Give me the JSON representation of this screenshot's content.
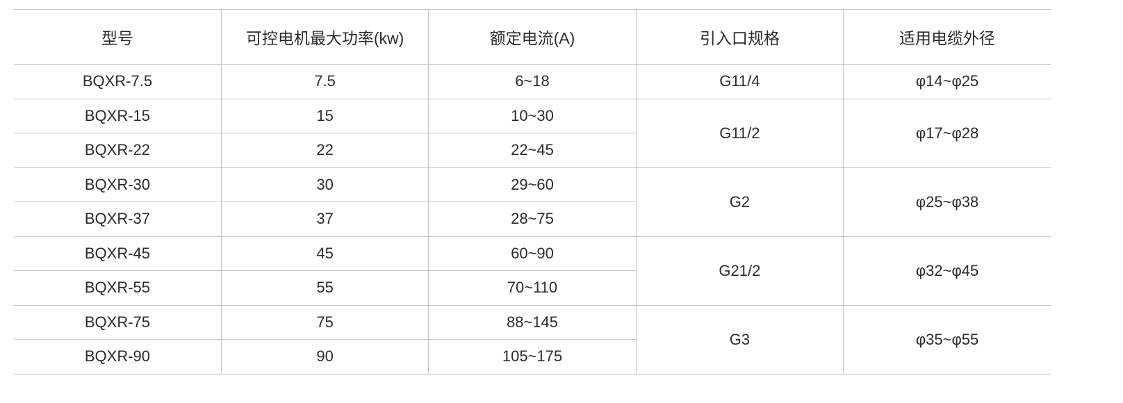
{
  "table": {
    "headers": [
      "型号",
      "可控电机最大功率(kw)",
      "额定电流(A)",
      "引入口规格",
      "适用电缆外径"
    ],
    "rows": [
      {
        "model": "BQXR-7.5",
        "power": "7.5",
        "current": "6~18"
      },
      {
        "model": "BQXR-15",
        "power": "15",
        "current": "10~30"
      },
      {
        "model": "BQXR-22",
        "power": "22",
        "current": "22~45"
      },
      {
        "model": "BQXR-30",
        "power": "30",
        "current": "29~60"
      },
      {
        "model": "BQXR-37",
        "power": "37",
        "current": "28~75"
      },
      {
        "model": "BQXR-45",
        "power": "45",
        "current": "60~90"
      },
      {
        "model": "BQXR-55",
        "power": "55",
        "current": "70~110"
      },
      {
        "model": "BQXR-75",
        "power": "75",
        "current": "88~145"
      },
      {
        "model": "BQXR-90",
        "power": "90",
        "current": "105~175"
      }
    ],
    "groups": [
      {
        "inlet": "G11/4",
        "cable": "φ14~φ25"
      },
      {
        "inlet": "G11/2",
        "cable": "φ17~φ28"
      },
      {
        "inlet": "G2",
        "cable": "φ25~φ38"
      },
      {
        "inlet": "G21/2",
        "cable": "φ32~φ45"
      },
      {
        "inlet": "G3",
        "cable": "φ35~φ55"
      }
    ]
  }
}
